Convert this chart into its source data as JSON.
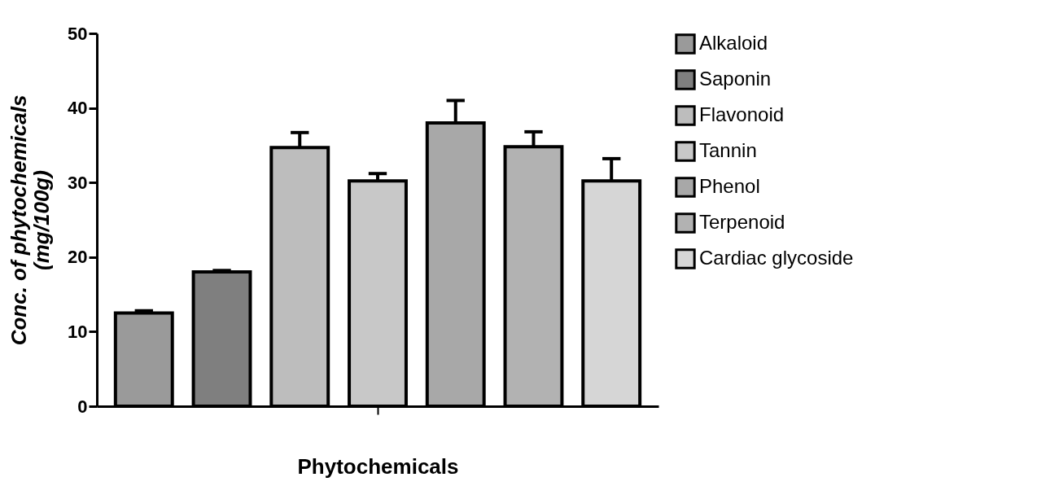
{
  "chart_data": {
    "type": "bar",
    "xlabel": "Phytochemicals",
    "ylabel": "Conc. of phytochemicals\n(mg/100g)",
    "categories": [
      null
    ],
    "ylim": [
      0,
      50
    ],
    "yticks": [
      0,
      10,
      20,
      30,
      40,
      50
    ],
    "legend": "right",
    "tick_labels": "y",
    "grid": false,
    "series": [
      {
        "name": "Alkaloid",
        "color": "#9a9a9a",
        "values": [
          12.5
        ],
        "errors": [
          0.3
        ]
      },
      {
        "name": "Saponin",
        "color": "#7f7f7f",
        "values": [
          18
        ],
        "errors": [
          0.2
        ]
      },
      {
        "name": "Flavonoid",
        "color": "#bdbdbd",
        "values": [
          34.7
        ],
        "errors": [
          2
        ]
      },
      {
        "name": "Tannin",
        "color": "#c8c8c8",
        "values": [
          30.2
        ],
        "errors": [
          1
        ]
      },
      {
        "name": "Phenol",
        "color": "#a8a8a8",
        "values": [
          38
        ],
        "errors": [
          3
        ]
      },
      {
        "name": "Terpenoid",
        "color": "#b2b2b2",
        "values": [
          34.8
        ],
        "errors": [
          2
        ]
      },
      {
        "name": "Cardiac glycoside",
        "color": "#d6d6d6",
        "values": [
          30.2
        ],
        "errors": [
          3
        ]
      }
    ]
  }
}
